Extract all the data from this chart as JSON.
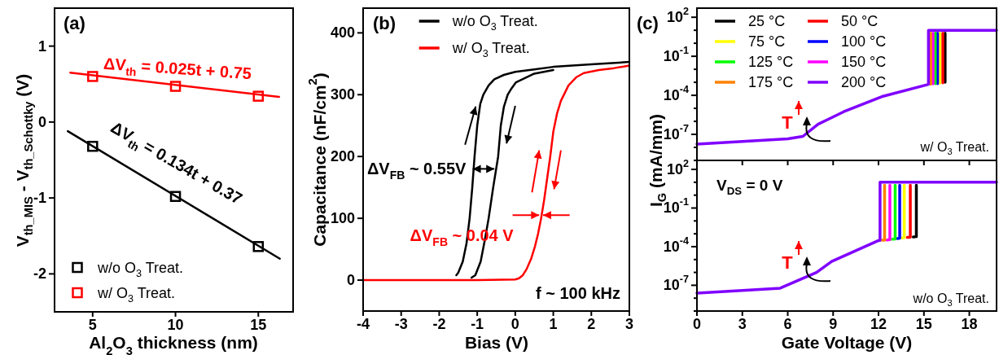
{
  "chart_data": [
    {
      "type": "scatter",
      "title": "(a)",
      "xlabel": "Al$_{2}$O$_{3}$ thickness (nm)",
      "ylabel": "V$_{th_MIS}$ - V$_{th_Schottky}$ (V)",
      "xlim": [
        2.7,
        17.1
      ],
      "ylim": [
        -2.5,
        1.5
      ],
      "xticks": [
        5,
        10,
        15
      ],
      "yticks": [
        -2,
        -1,
        0,
        1
      ],
      "legend": "bottom left",
      "annotations": [
        "ΔV$_{th}$ = 0.025t + 0.75",
        "ΔV$_{th}$ = 0.134t + 0.37"
      ],
      "series": [
        {
          "name": "w/o O$_{3}$ Treat.",
          "marker": "square",
          "color": "#000000",
          "x": [
            5,
            10,
            15
          ],
          "values": [
            -0.32,
            -0.98,
            -1.64
          ]
        },
        {
          "name": "w/ O$_{3}$ Treat.",
          "marker": "square",
          "color": "#ff0000",
          "x": [
            5,
            10,
            15
          ],
          "values": [
            0.6,
            0.47,
            0.34
          ]
        },
        {
          "type": "line",
          "color": "#000000",
          "x": [
            3.5,
            16.3
          ],
          "values": [
            -0.12,
            -1.8
          ]
        },
        {
          "type": "line",
          "color": "#ff0000",
          "x": [
            3.65,
            16.25
          ],
          "values": [
            0.65,
            0.33
          ]
        }
      ]
    },
    {
      "type": "line",
      "title": "(b)",
      "xlabel": "Bias (V)",
      "ylabel": "Capacitance (nF/cm$^{2}$)",
      "xlim": [
        -4,
        3
      ],
      "ylim": [
        -50,
        440
      ],
      "xticks": [
        -4,
        -3,
        -2,
        -1,
        0,
        1,
        2,
        3
      ],
      "yticks": [
        0,
        100,
        200,
        300,
        400
      ],
      "legend": "top",
      "annotations": [
        {
          "text": "ΔV$_{FB}$ ~ 0.55V",
          "x": -1.09,
          "y": 180
        },
        {
          "text": "ΔV$_{FB}$ ~ 0.04 V",
          "x": 0.68,
          "y": 105
        },
        "f ~ 100 kHz"
      ],
      "series": [
        {
          "name": "w/o O$_{3}$ Treat.",
          "color": "#000000",
          "x": [
            -1.55,
            -1.5,
            -1.38,
            -1.28,
            -1.2,
            -1.13,
            -1.07,
            -1.0,
            -0.92,
            -0.84,
            -0.7,
            -0.55,
            -0.3,
            0,
            0.5,
            1,
            2,
            3
          ],
          "values": [
            8,
            12,
            30,
            60,
            100,
            150,
            200,
            250,
            285,
            300,
            315,
            325,
            332,
            337,
            341,
            345,
            349,
            353
          ]
        },
        {
          "color": "#000000",
          "x": [
            -1.15,
            -1.05,
            -0.91,
            -0.8,
            -0.7,
            -0.58,
            -0.45,
            -0.38,
            -0.3,
            -0.2,
            -0.1,
            0.02,
            0.5,
            1
          ],
          "values": [
            4,
            8,
            30,
            65,
            100,
            150,
            200,
            250,
            280,
            300,
            310,
            320,
            334,
            340
          ]
        },
        {
          "name": "w/ O$_{3}$ Treat.",
          "color": "#ff0000",
          "x": [
            -4,
            -2,
            -1,
            0,
            0.1,
            0.2,
            0.3,
            0.42,
            0.52,
            0.6,
            0.68,
            0.76,
            0.84,
            0.92,
            1.0,
            1.1,
            1.2,
            1.4,
            1.6,
            1.8,
            2.2,
            2.6,
            3
          ],
          "values": [
            0,
            0,
            0,
            1,
            3,
            8,
            18,
            35,
            55,
            75,
            100,
            130,
            165,
            200,
            240,
            270,
            290,
            315,
            328,
            335,
            340,
            343,
            347
          ]
        }
      ]
    },
    {
      "type": "line",
      "title": "(c)",
      "ylabel": "I$_{G}$ (mA/mm)",
      "xlim": [
        0,
        19.8
      ],
      "ylim": [
        1e-09,
        500
      ],
      "log": "y",
      "tick_labels": "y",
      "legend": "top left",
      "xticks": [
        0,
        3,
        6,
        9,
        12,
        15,
        18
      ],
      "yticks": [
        {
          "value": 100,
          "label": "10$^{2}$"
        },
        {
          "value": 10,
          "label": null
        },
        {
          "value": 1,
          "label": null
        },
        {
          "value": 0.1,
          "label": "10$^{-1}$"
        },
        {
          "value": 0.01,
          "label": null
        },
        {
          "value": 0.001,
          "label": null
        },
        {
          "value": 0.0001,
          "label": "10$^{-4}$"
        },
        {
          "value": 1e-05,
          "label": null
        },
        {
          "value": 1e-06,
          "label": null
        },
        {
          "value": 1e-07,
          "label": "10$^{-7}$"
        },
        {
          "value": 1e-08,
          "label": null
        },
        {
          "value": 1e-09,
          "label": null
        }
      ],
      "annotations": [
        "T",
        "w/ O$_{3}$ Treat."
      ],
      "series": [
        {
          "name": "25 °C",
          "color": "#000000",
          "x": [
            16.4,
            16.4
          ],
          "values": [
            0.001,
            6
          ]
        },
        {
          "name": "50 °C",
          "color": "#ff0000",
          "x": [
            16.25,
            16.25
          ],
          "values": [
            0.0009,
            6
          ]
        },
        {
          "name": "75 °C",
          "color": "#ffff00",
          "x": [
            16.05,
            16.05
          ],
          "values": [
            0.00085,
            6
          ]
        },
        {
          "name": "100 °C",
          "color": "#0000ff",
          "x": [
            15.9,
            15.9
          ],
          "values": [
            0.0008,
            6
          ]
        },
        {
          "name": "125 °C",
          "color": "#00ff00",
          "x": [
            15.75,
            15.75
          ],
          "values": [
            0.0008,
            6
          ]
        },
        {
          "name": "150 °C",
          "color": "#ff00ff",
          "x": [
            15.6,
            15.6
          ],
          "values": [
            0.00075,
            6
          ]
        },
        {
          "name": "175 °C",
          "color": "#ff8000",
          "x": [
            15.45,
            15.45
          ],
          "values": [
            0.0007,
            6
          ]
        },
        {
          "name": "200 °C",
          "color": "#8000ff",
          "x": [
            0,
            3,
            6,
            7,
            8,
            9.7,
            12.3,
            15.3,
            15.3,
            19.8
          ],
          "values": [
            1.8e-08,
            2.8e-08,
            4.5e-08,
            7e-08,
            6e-07,
            5.5e-06,
            8.5e-05,
            0.0007,
            10,
            10
          ]
        }
      ]
    },
    {
      "type": "line",
      "xlabel": "Gate Voltage (V)",
      "xlim": [
        0,
        19.8
      ],
      "ylim": [
        1e-09,
        500
      ],
      "log": "y",
      "xticks": [
        0,
        3,
        6,
        9,
        12,
        15,
        18
      ],
      "yticks": [
        {
          "value": 100,
          "label": "10$^{2}$"
        },
        {
          "value": 10,
          "label": null
        },
        {
          "value": 1,
          "label": null
        },
        {
          "value": 0.1,
          "label": "10$^{-1}$"
        },
        {
          "value": 0.01,
          "label": null
        },
        {
          "value": 0.001,
          "label": null
        },
        {
          "value": 0.0001,
          "label": "10$^{-4}$"
        },
        {
          "value": 1e-05,
          "label": null
        },
        {
          "value": 1e-06,
          "label": null
        },
        {
          "value": 1e-07,
          "label": "10$^{-7}$"
        },
        {
          "value": 1e-08,
          "label": null
        },
        {
          "value": 1e-09,
          "label": null
        }
      ],
      "annotations": [
        "V$_{DS}$ = 0 V",
        "T",
        "w/o O$_{3}$ Treat."
      ],
      "series": [
        {
          "color": "#000000",
          "x": [
            14.3,
            14.5,
            14.5
          ],
          "values": [
            0.00057,
            0.0006,
            6
          ]
        },
        {
          "color": "#ff0000",
          "x": [
            13.9,
            14.1,
            14.1
          ],
          "values": [
            0.00052,
            0.00055,
            6
          ]
        },
        {
          "color": "#ffff00",
          "x": [
            13.55,
            13.7,
            13.7
          ],
          "values": [
            0.00047,
            0.0005,
            6
          ]
        },
        {
          "color": "#0000ff",
          "x": [
            13.25,
            13.4,
            13.4
          ],
          "values": [
            0.00042,
            0.00045,
            6
          ]
        },
        {
          "color": "#00ff00",
          "x": [
            12.9,
            13.1,
            13.1
          ],
          "values": [
            0.00038,
            0.0004,
            6
          ]
        },
        {
          "color": "#ff00ff",
          "x": [
            12.57,
            12.75,
            12.75
          ],
          "values": [
            0.00033,
            0.00035,
            6
          ]
        },
        {
          "color": "#ff8000",
          "x": [
            12.25,
            12.4,
            12.4
          ],
          "values": [
            0.000315,
            0.00032,
            6
          ]
        },
        {
          "color": "#8000ff",
          "x": [
            0,
            3,
            5.5,
            7.9,
            8.9,
            12,
            12.1,
            12.1,
            19.8
          ],
          "values": [
            2.5e-08,
            4e-08,
            6e-08,
            1e-06,
            7e-06,
            0.0003,
            0.00031,
            10,
            10
          ]
        }
      ]
    }
  ]
}
